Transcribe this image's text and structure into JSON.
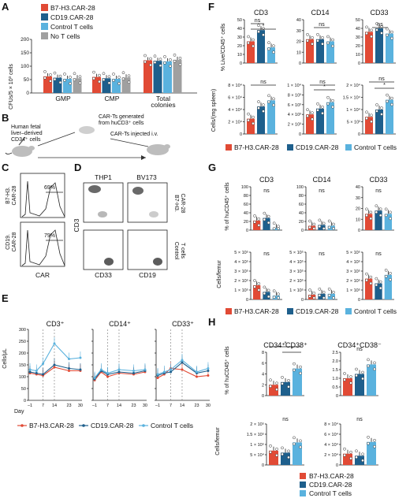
{
  "colors": {
    "b7": "#E14A35",
    "cd19": "#1E5F8C",
    "ctrl": "#5AB2DE",
    "not": "#A0A0A0"
  },
  "panels": {
    "A": {
      "letter": "A",
      "ylabel": "CFUs/5 × 10³ cells",
      "yticks": [
        "0",
        "50",
        "100",
        "150",
        "200"
      ],
      "legend": [
        "B7-H3.CAR-28",
        "CD19.CAR-28",
        "Control T cells",
        "No T cells"
      ],
      "chart_data": {
        "type": "bar",
        "ylim": [
          0,
          200
        ],
        "categories": [
          "GMP",
          "CMP",
          "Total colonies"
        ],
        "series": [
          {
            "name": "B7-H3.CAR-28",
            "values": [
              62,
              60,
              122
            ]
          },
          {
            "name": "CD19.CAR-28",
            "values": [
              57,
              55,
              120
            ]
          },
          {
            "name": "Control T cells",
            "values": [
              53,
              53,
              118
            ]
          },
          {
            "name": "No T cells",
            "values": [
              55,
              58,
              124
            ]
          }
        ]
      }
    },
    "B": {
      "letter": "B",
      "text1": [
        "Human fetal",
        "liver–derived",
        "CD34⁺ cells"
      ],
      "text2": [
        "CAR-Ts generated",
        "from huCD3⁺ cells"
      ],
      "text3": "CAR-Ts injected i.v."
    },
    "C": {
      "letter": "C",
      "rows": [
        "B7-H3.",
        "CAR-28",
        "CD19.",
        "CAR-28"
      ],
      "pct": [
        "69%",
        "79%"
      ],
      "xlabel": "CAR"
    },
    "D": {
      "letter": "D",
      "cols": [
        "THP1",
        "BV173"
      ],
      "rows": [
        "B7-H3.",
        "CAR-28",
        "Control",
        "T cells"
      ],
      "ylabel": "CD3",
      "xlabels": [
        "CD33",
        "CD19"
      ]
    },
    "E": {
      "letter": "E",
      "ylabel": "Cells/μL",
      "xlabel": "Day",
      "titles": [
        "CD3⁺",
        "CD14⁺",
        "CD33⁺"
      ],
      "yticks": [
        "0",
        "50",
        "100",
        "150",
        "200",
        "250",
        "300"
      ],
      "xticks": [
        "–1",
        "7",
        "14",
        "23",
        "30"
      ],
      "legend": [
        "B7-H3.CAR-28",
        "CD19.CAR-28",
        "Control T cells"
      ],
      "chart_data": {
        "type": "line",
        "x": [
          -1,
          3,
          7,
          14,
          23,
          30
        ],
        "ylim": [
          0,
          300
        ],
        "panels": [
          {
            "title": "CD3⁺",
            "series": [
              {
                "name": "B7-H3.CAR-28",
                "values": [
                  115,
                  110,
                  105,
                  140,
                  125,
                  125
                ]
              },
              {
                "name": "CD19.CAR-28",
                "values": [
                  120,
                  115,
                  110,
                  150,
                  135,
                  130
                ]
              },
              {
                "name": "Control T cells",
                "values": [
                  130,
                  125,
                  155,
                  240,
                  175,
                  180
                ]
              }
            ]
          },
          {
            "title": "CD14⁺",
            "series": [
              {
                "name": "B7-H3.CAR-28",
                "values": [
                  85,
                  120,
                  100,
                  115,
                  110,
                  120
                ]
              },
              {
                "name": "CD19.CAR-28",
                "values": [
                  90,
                  125,
                  110,
                  120,
                  115,
                  125
                ]
              },
              {
                "name": "Control T cells",
                "values": [
                  95,
                  130,
                  115,
                  130,
                  125,
                  130
                ]
              }
            ]
          },
          {
            "title": "CD33⁺",
            "series": [
              {
                "name": "B7-H3.CAR-28",
                "values": [
                  95,
                  110,
                  135,
                  130,
                  100,
                  105
                ]
              },
              {
                "name": "CD19.CAR-28",
                "values": [
                  105,
                  115,
                  120,
                  160,
                  115,
                  125
                ]
              },
              {
                "name": "Control T cells",
                "values": [
                  110,
                  120,
                  130,
                  170,
                  120,
                  135
                ]
              }
            ]
          }
        ]
      }
    },
    "F": {
      "letter": "F",
      "titles": [
        "CD3",
        "CD14",
        "CD33"
      ],
      "ylabel_top": "% Live/CD45⁺ cells",
      "ylabel_bot": "Cells/(mg spleen)",
      "legend": [
        "B7-H3.CAR-28",
        "CD19.CAR-28",
        "Control T cells"
      ],
      "sig_top": [
        "ns",
        "*",
        "ns",
        "ns"
      ],
      "sig_bot": [
        "ns",
        "ns",
        "*",
        "ns",
        "*"
      ],
      "ticks_top": [
        [
          "0",
          "10",
          "20",
          "30",
          "40",
          "50"
        ],
        [
          "0",
          "10",
          "20",
          "30",
          "40"
        ],
        [
          "0",
          "10",
          "20",
          "30",
          "40",
          "50"
        ]
      ],
      "ticks_bot": [
        [
          "0",
          "2 × 10⁴",
          "4 × 10⁴",
          "6 × 10⁴",
          "8 × 10⁴"
        ],
        [
          "0",
          "2 × 10³",
          "4 × 10³",
          "6 × 10³",
          "8 × 10³",
          "1 × 10⁴"
        ],
        [
          "0",
          "5 × 10³",
          "1 × 10⁴",
          "1.5 × 10⁴",
          "2 × 10⁴"
        ]
      ],
      "chart_data": {
        "type": "bar",
        "categories": [
          "B7-H3.CAR-28",
          "CD19.CAR-28",
          "Control T cells"
        ],
        "panels": [
          {
            "title": "CD3",
            "row": "top",
            "ylim": [
              0,
              50
            ],
            "values": [
              25,
              38,
              18
            ]
          },
          {
            "title": "CD14",
            "row": "top",
            "ylim": [
              0,
              40
            ],
            "values": [
              22,
              22,
              20
            ]
          },
          {
            "title": "CD33",
            "row": "top",
            "ylim": [
              0,
              50
            ],
            "values": [
              36,
              40,
              34
            ]
          },
          {
            "title": "CD3",
            "row": "bottom",
            "ylim": [
              0,
              80000
            ],
            "values": [
              25000,
              45000,
              55000
            ]
          },
          {
            "title": "CD14",
            "row": "bottom",
            "ylim": [
              0,
              10000
            ],
            "values": [
              4000,
              5200,
              6500
            ]
          },
          {
            "title": "CD33",
            "row": "bottom",
            "ylim": [
              0,
              20000
            ],
            "values": [
              7000,
              10000,
              14000
            ]
          }
        ]
      }
    },
    "G": {
      "letter": "G",
      "titles": [
        "CD3",
        "CD14",
        "CD33"
      ],
      "ylabel_top": "% of huCD45⁺ cells",
      "ylabel_bot": "Cells/femur",
      "legend": [
        "B7-H3.CAR-28",
        "CD19.CAR-28",
        "Control T cells"
      ],
      "sig": "ns",
      "ticks_top": [
        [
          "0",
          "20",
          "40",
          "60",
          "80",
          "100"
        ],
        [
          "0",
          "20",
          "40",
          "60",
          "80",
          "100"
        ],
        [
          "0",
          "10",
          "20",
          "30",
          "40"
        ]
      ],
      "ticks_bot": [
        [
          "0",
          "1 × 10⁵",
          "2 × 10⁵",
          "3 × 10⁵",
          "4 × 10⁵",
          "5 × 10⁵"
        ],
        [
          "0",
          "1 × 10⁵",
          "2 × 10⁵",
          "3 × 10⁵",
          "4 × 10⁵",
          "5 × 10⁵"
        ],
        [
          "0",
          "1 × 10⁵",
          "2 × 10⁵",
          "3 × 10⁵",
          "4 × 10⁵",
          "5 × 10⁵"
        ]
      ],
      "chart_data": {
        "type": "bar",
        "categories": [
          "B7-H3.CAR-28",
          "CD19.CAR-28",
          "Control T cells"
        ],
        "panels": [
          {
            "title": "CD3",
            "row": "top",
            "ylim": [
              0,
              100
            ],
            "values": [
              22,
              28,
              5
            ]
          },
          {
            "title": "CD14",
            "row": "top",
            "ylim": [
              0,
              100
            ],
            "values": [
              10,
              12,
              10
            ]
          },
          {
            "title": "CD33",
            "row": "top",
            "ylim": [
              0,
              40
            ],
            "values": [
              15,
              18,
              15
            ]
          },
          {
            "title": "CD3",
            "row": "bottom",
            "ylim": [
              0,
              500000
            ],
            "values": [
              150000,
              80000,
              40000
            ]
          },
          {
            "title": "CD14",
            "row": "bottom",
            "ylim": [
              0,
              500000
            ],
            "values": [
              50000,
              60000,
              60000
            ]
          },
          {
            "title": "CD33",
            "row": "bottom",
            "ylim": [
              0,
              500000
            ],
            "values": [
              220000,
              170000,
              260000
            ]
          }
        ]
      }
    },
    "H": {
      "letter": "H",
      "titles": [
        "CD34⁺CD38⁺",
        "CD34⁺CD38⁻"
      ],
      "ylabel_top": "% of huCD45⁺ cells",
      "ylabel_bot": "Cells/femur",
      "legend": [
        "B7-H3.CAR-28",
        "CD19.CAR-28",
        "Control T cells"
      ],
      "sig_top": [
        "*",
        "*",
        "ns"
      ],
      "sig_bot": [
        "ns",
        "ns"
      ],
      "ticks_top": [
        [
          "0",
          "2",
          "4",
          "6",
          "8"
        ],
        [
          "0",
          "0.5",
          "1.0",
          "1.5",
          "2.0",
          "2.5"
        ]
      ],
      "ticks_bot": [
        [
          "0",
          "5 × 10⁴",
          "1 × 10⁵",
          "1.5 × 10⁵",
          "2 × 10⁵"
        ],
        [
          "0",
          "2 × 10⁴",
          "4 × 10⁴",
          "6 × 10⁴",
          "8 × 10⁴"
        ]
      ],
      "chart_data": {
        "type": "bar",
        "categories": [
          "B7-H3.CAR-28",
          "CD19.CAR-28",
          "Control T cells"
        ],
        "panels": [
          {
            "title": "CD34⁺CD38⁺",
            "row": "top",
            "ylim": [
              0,
              8
            ],
            "values": [
              2.0,
              2.5,
              5.0
            ]
          },
          {
            "title": "CD34⁺CD38⁻",
            "row": "top",
            "ylim": [
              0,
              2.5
            ],
            "values": [
              1.0,
              1.25,
              1.8
            ]
          },
          {
            "title": "CD34⁺CD38⁺",
            "row": "bottom",
            "ylim": [
              0,
              200000
            ],
            "values": [
              70000,
              60000,
              110000
            ]
          },
          {
            "title": "CD34⁺CD38⁻",
            "row": "bottom",
            "ylim": [
              0,
              80000
            ],
            "values": [
              22000,
              18000,
              45000
            ]
          }
        ]
      }
    }
  }
}
